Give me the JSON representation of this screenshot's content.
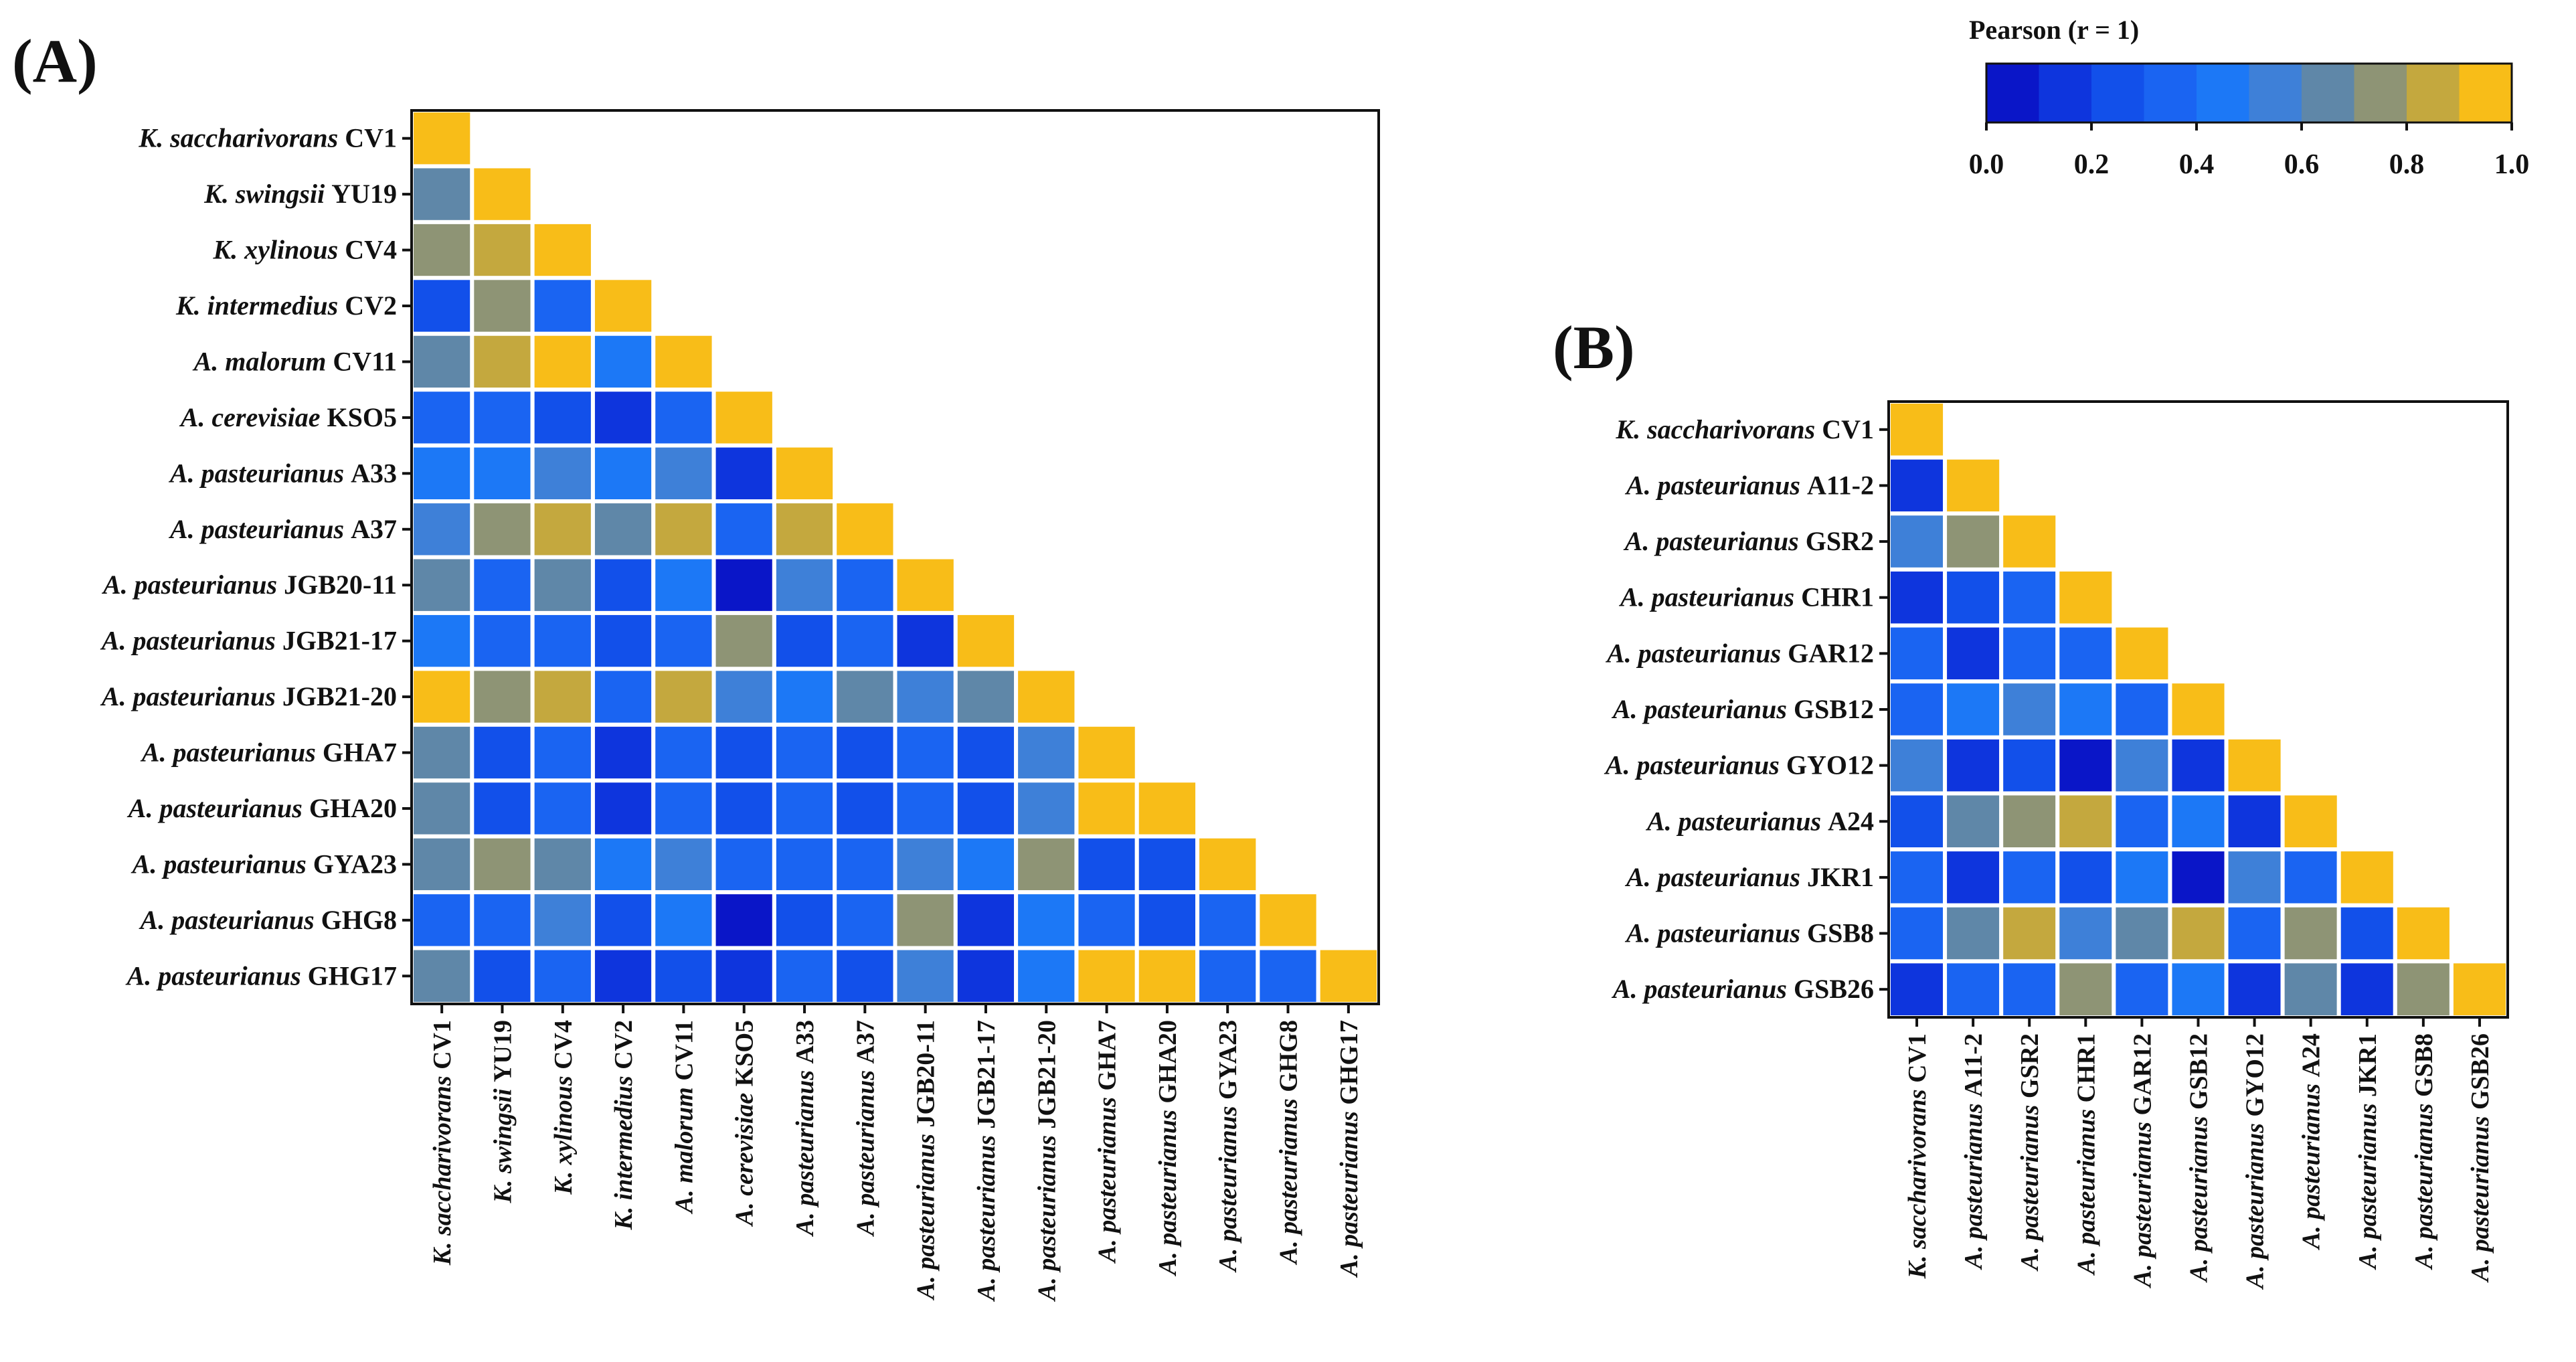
{
  "chart_data": [
    {
      "type": "heatmap",
      "panel_label": "(A)",
      "lower_triangle": true,
      "strains": [
        {
          "genus": "K. saccharivorans",
          "strain": "CV1"
        },
        {
          "genus": "K. swingsii",
          "strain": "YU19"
        },
        {
          "genus": "K. xylinous",
          "strain": "CV4"
        },
        {
          "genus": "K. intermedius",
          "strain": "CV2"
        },
        {
          "genus": "A. malorum",
          "strain": "CV11"
        },
        {
          "genus": "A. cerevisiae",
          "strain": "KSO5"
        },
        {
          "genus": "A. pasteurianus",
          "strain": "A33"
        },
        {
          "genus": "A. pasteurianus",
          "strain": "A37"
        },
        {
          "genus": "A. pasteurianus",
          "strain": "JGB20-11"
        },
        {
          "genus": "A. pasteurianus",
          "strain": "JGB21-17"
        },
        {
          "genus": "A. pasteurianus",
          "strain": "JGB21-20"
        },
        {
          "genus": "A. pasteurianus",
          "strain": "GHA7"
        },
        {
          "genus": "A. pasteurianus",
          "strain": "GHA20"
        },
        {
          "genus": "A. pasteurianus",
          "strain": "GYA23"
        },
        {
          "genus": "A. pasteurianus",
          "strain": "GHG8"
        },
        {
          "genus": "A. pasteurianus",
          "strain": "GHG17"
        }
      ],
      "values": [
        [
          1.0
        ],
        [
          0.65,
          1.0
        ],
        [
          0.75,
          0.82,
          1.0
        ],
        [
          0.25,
          0.75,
          0.35,
          1.0
        ],
        [
          0.65,
          0.85,
          1.0,
          0.4,
          1.0
        ],
        [
          0.3,
          0.32,
          0.28,
          0.15,
          0.3,
          1.0
        ],
        [
          0.4,
          0.42,
          0.5,
          0.4,
          0.55,
          0.12,
          1.0
        ],
        [
          0.5,
          0.72,
          0.8,
          0.6,
          0.85,
          0.3,
          0.82,
          1.0
        ],
        [
          0.65,
          0.32,
          0.6,
          0.22,
          0.48,
          0.05,
          0.5,
          0.35,
          1.0
        ],
        [
          0.42,
          0.35,
          0.32,
          0.2,
          0.35,
          0.78,
          0.25,
          0.38,
          0.18,
          1.0
        ],
        [
          0.9,
          0.78,
          0.88,
          0.35,
          0.82,
          0.5,
          0.45,
          0.62,
          0.5,
          0.62,
          1.0
        ],
        [
          0.66,
          0.27,
          0.3,
          0.16,
          0.3,
          0.23,
          0.32,
          0.26,
          0.32,
          0.28,
          0.55,
          1.0
        ],
        [
          0.66,
          0.27,
          0.3,
          0.16,
          0.3,
          0.23,
          0.32,
          0.26,
          0.32,
          0.28,
          0.55,
          1.0,
          1.0
        ],
        [
          0.66,
          0.7,
          0.6,
          0.45,
          0.55,
          0.32,
          0.38,
          0.36,
          0.5,
          0.46,
          0.72,
          0.28,
          0.25,
          1.0
        ],
        [
          0.36,
          0.37,
          0.58,
          0.2,
          0.45,
          0.07,
          0.26,
          0.3,
          0.72,
          0.12,
          0.42,
          0.3,
          0.25,
          0.38,
          1.0
        ],
        [
          0.66,
          0.24,
          0.33,
          0.12,
          0.27,
          0.18,
          0.3,
          0.2,
          0.5,
          0.18,
          0.4,
          0.92,
          0.9,
          0.3,
          0.33,
          1.0
        ]
      ]
    },
    {
      "type": "heatmap",
      "panel_label": "(B)",
      "lower_triangle": true,
      "strains": [
        {
          "genus": "K. saccharivorans",
          "strain": "CV1"
        },
        {
          "genus": "A. pasteurianus",
          "strain": "A11-2"
        },
        {
          "genus": "A. pasteurianus",
          "strain": "GSR2"
        },
        {
          "genus": "A. pasteurianus",
          "strain": "CHR1"
        },
        {
          "genus": "A. pasteurianus",
          "strain": "GAR12"
        },
        {
          "genus": "A. pasteurianus",
          "strain": "GSB12"
        },
        {
          "genus": "A. pasteurianus",
          "strain": "GYO12"
        },
        {
          "genus": "A. pasteurianus",
          "strain": "A24"
        },
        {
          "genus": "A. pasteurianus",
          "strain": "JKR1"
        },
        {
          "genus": "A. pasteurianus",
          "strain": "GSB8"
        },
        {
          "genus": "A. pasteurianus",
          "strain": "GSB26"
        }
      ],
      "values": [
        [
          1.0
        ],
        [
          0.15,
          1.0
        ],
        [
          0.5,
          0.78,
          1.0
        ],
        [
          0.15,
          0.25,
          0.35,
          1.0
        ],
        [
          0.35,
          0.12,
          0.3,
          0.38,
          1.0
        ],
        [
          0.35,
          0.4,
          0.58,
          0.42,
          0.32,
          1.0
        ],
        [
          0.55,
          0.1,
          0.22,
          0.05,
          0.55,
          0.18,
          1.0
        ],
        [
          0.22,
          0.65,
          0.78,
          0.8,
          0.35,
          0.4,
          0.14,
          1.0
        ],
        [
          0.38,
          0.15,
          0.3,
          0.2,
          0.48,
          0.05,
          0.5,
          0.3,
          1.0
        ],
        [
          0.3,
          0.6,
          0.8,
          0.5,
          0.6,
          0.8,
          0.3,
          0.78,
          0.22,
          1.0
        ],
        [
          0.12,
          0.3,
          0.38,
          0.7,
          0.32,
          0.48,
          0.15,
          0.68,
          0.13,
          0.7,
          1.0
        ]
      ]
    }
  ],
  "colorbar": {
    "title": "Pearson (r = 1)",
    "ticks": [
      "0.0",
      "0.2",
      "0.4",
      "0.6",
      "0.8",
      "1.0"
    ],
    "range": [
      0,
      1
    ],
    "colors": [
      "#0a16c8",
      "#0e35dd",
      "#1250ea",
      "#1a64f2",
      "#1c78f6",
      "#3e80d8",
      "#5f87a8",
      "#8e9475",
      "#c4a83e",
      "#f8bd18"
    ]
  }
}
